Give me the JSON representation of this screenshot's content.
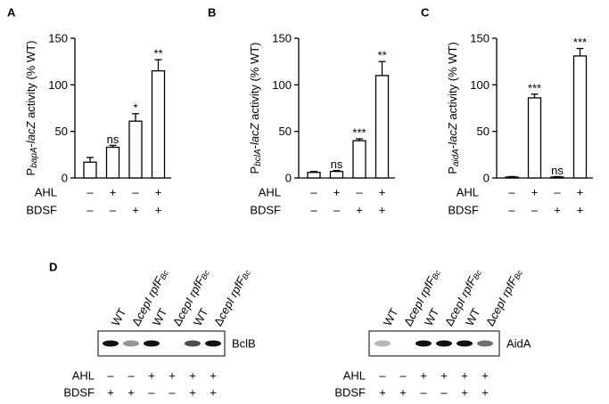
{
  "chart_data": [
    {
      "type": "bar",
      "panel": "A",
      "ylabel_parts": [
        "P",
        "bapA",
        "-",
        "lacZ",
        " activity (% WT)"
      ],
      "values": [
        17,
        33,
        61,
        115
      ],
      "errors": [
        5,
        2,
        8,
        12
      ],
      "annotations": [
        null,
        "ns",
        "*",
        "**"
      ],
      "color": "#ffffff",
      "ylim": [
        0,
        150
      ],
      "yticks": [
        0,
        50,
        100,
        150
      ],
      "conditions": [
        {
          "label": "AHL",
          "values": [
            "–",
            "+",
            "–",
            "+"
          ]
        },
        {
          "label": "BDSF",
          "values": [
            "–",
            "–",
            "+",
            "+"
          ]
        }
      ]
    },
    {
      "type": "bar",
      "panel": "B",
      "ylabel_parts": [
        "P",
        "bclA",
        "-",
        "lacZ",
        " activity (% WT)"
      ],
      "values": [
        6,
        7,
        40,
        110
      ],
      "errors": [
        1,
        1,
        2,
        15
      ],
      "annotations": [
        null,
        "ns",
        "***",
        "**"
      ],
      "color": "#ffffff",
      "ylim": [
        0,
        150
      ],
      "yticks": [
        0,
        50,
        100,
        150
      ],
      "conditions": [
        {
          "label": "AHL",
          "values": [
            "–",
            "+",
            "–",
            "+"
          ]
        },
        {
          "label": "BDSF",
          "values": [
            "–",
            "–",
            "+",
            "+"
          ]
        }
      ]
    },
    {
      "type": "bar",
      "panel": "C",
      "ylabel_parts": [
        "P",
        "aidA",
        "-",
        "lacZ",
        " activity (% WT)"
      ],
      "values": [
        1,
        86,
        1,
        131
      ],
      "errors": [
        0.5,
        4,
        0.5,
        8
      ],
      "annotations": [
        null,
        "***",
        "ns",
        "***"
      ],
      "color": "#ffffff",
      "ylim": [
        0,
        150
      ],
      "yticks": [
        0,
        50,
        100,
        150
      ],
      "conditions": [
        {
          "label": "AHL",
          "values": [
            "–",
            "+",
            "–",
            "+"
          ]
        },
        {
          "label": "BDSF",
          "values": [
            "–",
            "–",
            "+",
            "+"
          ]
        }
      ]
    }
  ],
  "panel_d": {
    "panel": "D",
    "blots": [
      {
        "protein": "BclB",
        "lanes": [
          [
            "WT"
          ],
          [
            "Δ",
            "cepI rpfF",
            "Bc"
          ],
          [
            "WT"
          ],
          [
            "Δ",
            "cepI rpfF",
            "Bc"
          ],
          [
            "WT"
          ],
          [
            "Δ",
            "cepI rpfF",
            "Bc"
          ]
        ],
        "conditions": [
          {
            "label": "AHL",
            "values": [
              "–",
              "–",
              "+",
              "+",
              "+",
              "+"
            ]
          },
          {
            "label": "BDSF",
            "values": [
              "+",
              "+",
              "–",
              "–",
              "+",
              "+"
            ]
          }
        ]
      },
      {
        "protein": "AidA",
        "lanes": [
          [
            "WT"
          ],
          [
            "Δ",
            "cepI rpfF",
            "Bc"
          ],
          [
            "WT"
          ],
          [
            "Δ",
            "cepI rpfF",
            "Bc"
          ],
          [
            "WT"
          ],
          [
            "Δ",
            "cepI rpfF",
            "Bc"
          ]
        ],
        "conditions": [
          {
            "label": "AHL",
            "values": [
              "–",
              "–",
              "+",
              "+",
              "+",
              "+"
            ]
          },
          {
            "label": "BDSF",
            "values": [
              "+",
              "+",
              "–",
              "–",
              "+",
              "+"
            ]
          }
        ]
      }
    ]
  }
}
